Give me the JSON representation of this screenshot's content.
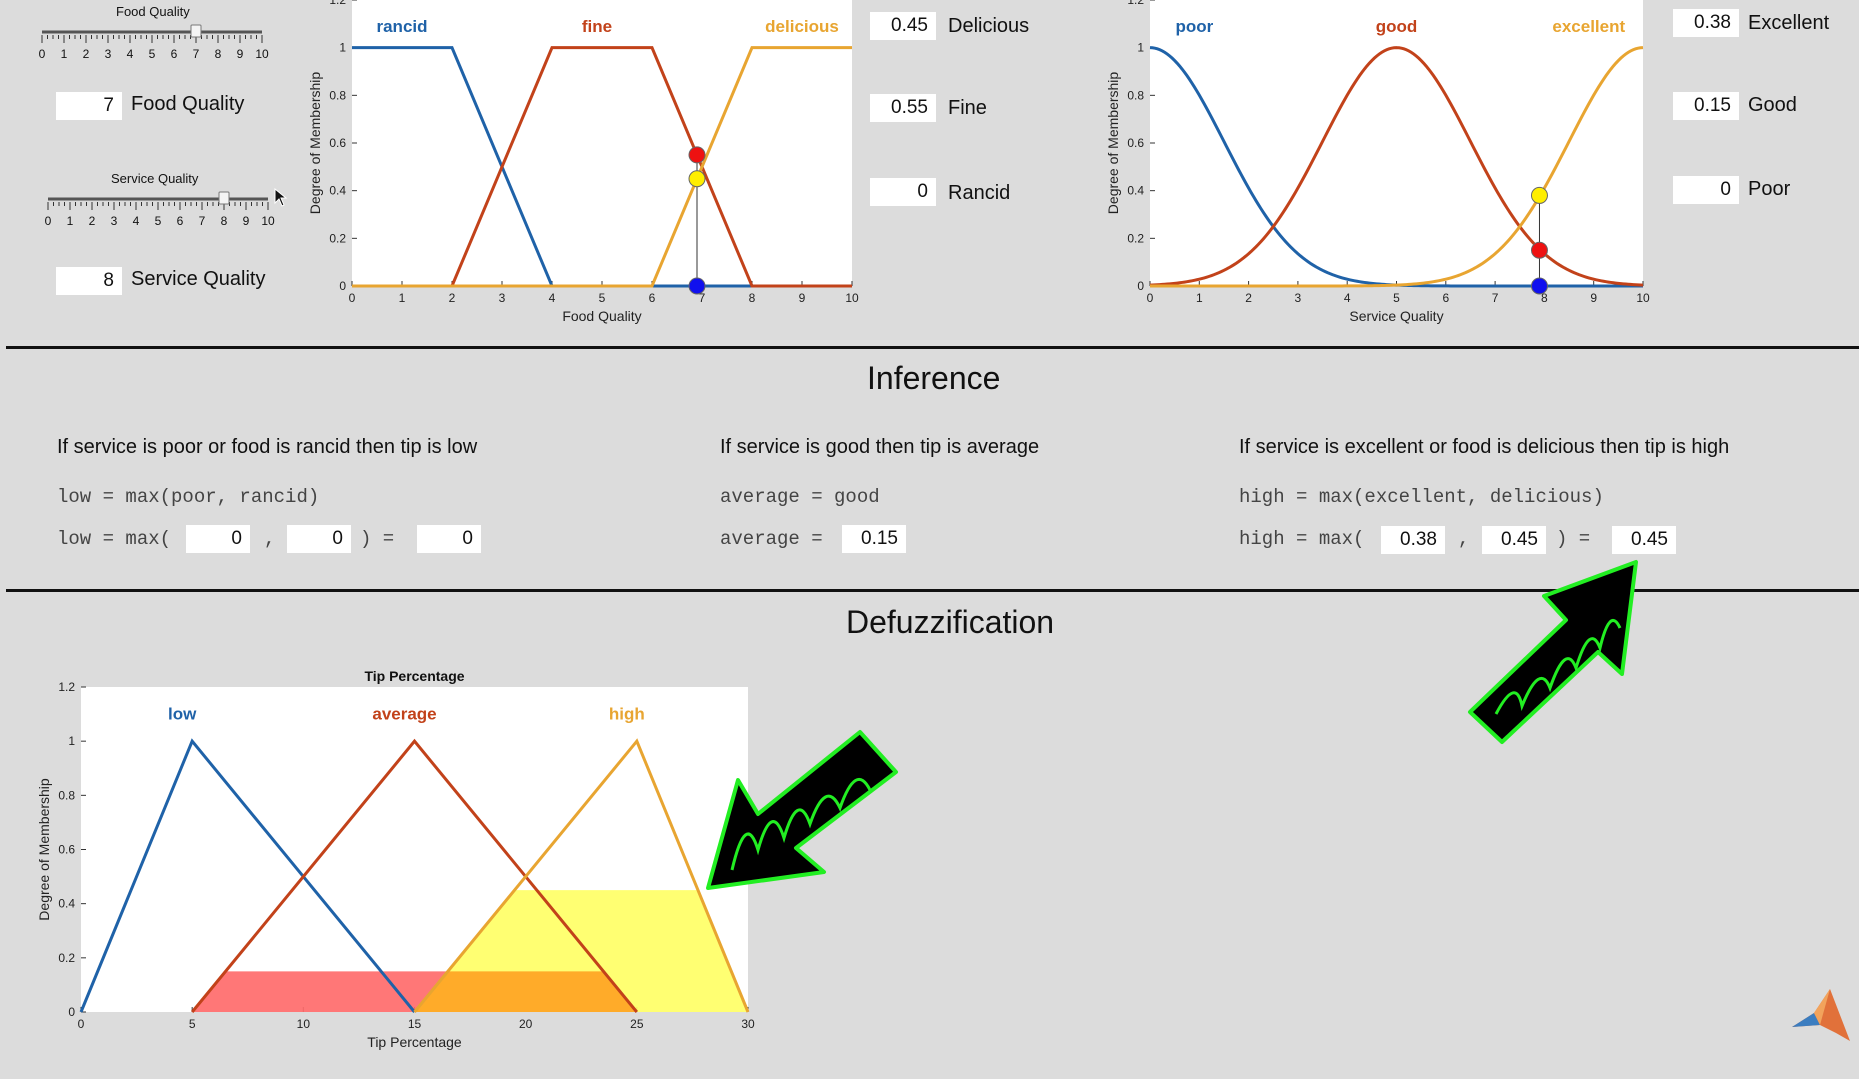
{
  "inputs": {
    "food_slider_title": "Food Quality",
    "service_slider_title": "Service Quality",
    "food_value": "7",
    "food_label": "Food Quality",
    "service_value": "8",
    "service_label": "Service Quality",
    "slider_ticks": [
      "0",
      "1",
      "2",
      "3",
      "4",
      "5",
      "6",
      "7",
      "8",
      "9",
      "10"
    ],
    "food_slider_level": 7,
    "service_slider_level": 8
  },
  "food_outputs": {
    "delicious_value": "0.45",
    "delicious_label": "Delicious",
    "fine_value": "0.55",
    "fine_label": "Fine",
    "rancid_value": "0",
    "rancid_label": "Rancid"
  },
  "service_outputs": {
    "excellent_value": "0.38",
    "excellent_label": "Excellent",
    "good_value": "0.15",
    "good_label": "Good",
    "poor_value": "0",
    "poor_label": "Poor"
  },
  "inference": {
    "heading": "Inference",
    "rule1": "If service is poor or food is rancid then tip is low",
    "rule2": "If service is good then tip is average",
    "rule3": "If service is excellent or food is delicious then tip is high",
    "r1_formula": "low = max(poor, rancid)",
    "r1_prefix": "low = max(",
    "r1_a": "0",
    "r1_b": "0",
    "r1_result": "0",
    "r2_formula": "average = good",
    "r2_prefix": "average =",
    "r2_value": "0.15",
    "r3_formula": "high = max(excellent, delicious)",
    "r3_prefix": "high = max(",
    "r3_a": "0.38",
    "r3_b": "0.45",
    "r3_result": "0.45",
    "comma": ",",
    "close_eq": ") ="
  },
  "defuzz": {
    "heading": "Defuzzification"
  },
  "colors": {
    "blue": "#1f62a8",
    "red": "#c2421a",
    "orange": "#e8a531",
    "fill_red": "#ff6b6b",
    "fill_orange": "#ffa726",
    "fill_yellow": "#ffff66",
    "arrow_green": "#22ee22"
  },
  "chart_data": [
    {
      "type": "line",
      "xlabel": "Food Quality",
      "ylabel": "Degree of Membership",
      "xlim": [
        0,
        10
      ],
      "ylim": [
        0,
        1.2
      ],
      "xticks": [
        "0",
        "1",
        "2",
        "3",
        "4",
        "5",
        "6",
        "7",
        "8",
        "9",
        "10"
      ],
      "yticks": [
        "0",
        "0.2",
        "0.4",
        "0.6",
        "0.8",
        "1",
        "1.2"
      ],
      "series": [
        {
          "name": "rancid",
          "x": [
            0,
            2,
            4,
            10
          ],
          "y": [
            1,
            1,
            0,
            0
          ]
        },
        {
          "name": "fine",
          "x": [
            0,
            2,
            4,
            6,
            8,
            10
          ],
          "y": [
            0,
            0,
            1,
            1,
            0,
            0
          ]
        },
        {
          "name": "delicious",
          "x": [
            0,
            6,
            8,
            10
          ],
          "y": [
            0,
            0,
            1,
            1
          ]
        }
      ],
      "markers": [
        {
          "x": 6.9,
          "y": 0.55,
          "color": "red"
        },
        {
          "x": 6.9,
          "y": 0.45,
          "color": "yellow"
        },
        {
          "x": 6.9,
          "y": 0,
          "color": "blue"
        }
      ]
    },
    {
      "type": "line",
      "xlabel": "Service Quality",
      "ylabel": "Degree of Membership",
      "xlim": [
        0,
        10
      ],
      "ylim": [
        0,
        1.2
      ],
      "xticks": [
        "0",
        "1",
        "2",
        "3",
        "4",
        "5",
        "6",
        "7",
        "8",
        "9",
        "10"
      ],
      "yticks": [
        "0",
        "0.2",
        "0.4",
        "0.6",
        "0.8",
        "1",
        "1.2"
      ],
      "series": [
        {
          "name": "poor",
          "gaussian": {
            "center": 0,
            "sigma": 1.5
          }
        },
        {
          "name": "good",
          "gaussian": {
            "center": 5,
            "sigma": 1.5
          }
        },
        {
          "name": "excellent",
          "gaussian": {
            "center": 10,
            "sigma": 1.5
          }
        }
      ],
      "markers": [
        {
          "x": 7.9,
          "y": 0.38,
          "color": "yellow"
        },
        {
          "x": 7.9,
          "y": 0.15,
          "color": "red"
        },
        {
          "x": 7.9,
          "y": 0,
          "color": "blue"
        }
      ]
    },
    {
      "type": "area",
      "title": "Tip Percentage",
      "xlabel": "Tip Percentage",
      "ylabel": "Degree of Membership",
      "xlim": [
        0,
        30
      ],
      "ylim": [
        0,
        1.2
      ],
      "xticks": [
        "0",
        "5",
        "10",
        "15",
        "20",
        "25",
        "30"
      ],
      "yticks": [
        "0",
        "0.2",
        "0.4",
        "0.6",
        "0.8",
        "1",
        "1.2"
      ],
      "series": [
        {
          "name": "low",
          "x": [
            0,
            5,
            15
          ],
          "y": [
            0,
            1,
            0
          ]
        },
        {
          "name": "average",
          "x": [
            5,
            15,
            25
          ],
          "y": [
            0,
            1,
            0
          ]
        },
        {
          "name": "high",
          "x": [
            15,
            25,
            30
          ],
          "y": [
            0,
            1,
            0
          ]
        }
      ],
      "clip_levels": {
        "low": 0,
        "average": 0.15,
        "high": 0.45
      }
    }
  ]
}
